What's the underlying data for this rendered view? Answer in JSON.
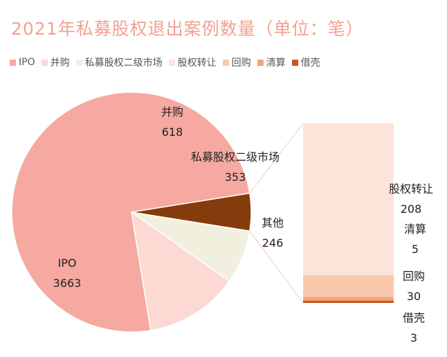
{
  "title": "2021年私募股权退出案例数量（单位：笔）",
  "legend": [
    {
      "label": "IPO",
      "color": "#f5a9a0"
    },
    {
      "label": "并购",
      "color": "#fdd9d4"
    },
    {
      "label": "私募股权二级市场",
      "color": "#f1f0df"
    },
    {
      "label": "股权转让",
      "color": "#fbe4da"
    },
    {
      "label": "回购",
      "color": "#f8c9ad"
    },
    {
      "label": "清算",
      "color": "#f2a57c"
    },
    {
      "label": "借壳",
      "color": "#c9581a"
    }
  ],
  "chart_data": {
    "type": "bar-of-pie",
    "title": "2021年私募股权退出案例数量（单位：笔）",
    "unit": "笔",
    "pie": [
      {
        "name": "IPO",
        "value": 3663,
        "color": "#f5a9a0"
      },
      {
        "name": "并购",
        "value": 618,
        "color": "#fdd9d4"
      },
      {
        "name": "私募股权二级市场",
        "value": 353,
        "color": "#f1f0df"
      },
      {
        "name": "其他",
        "value": 246,
        "color": "#843c0c"
      }
    ],
    "bar_breakdown_of": "其他",
    "bar": [
      {
        "name": "股权转让",
        "value": 208,
        "color": "#fbe4da"
      },
      {
        "name": "回购",
        "value": 30,
        "color": "#f8c9ad"
      },
      {
        "name": "清算",
        "value": 5,
        "color": "#f2a57c"
      },
      {
        "name": "借壳",
        "value": 3,
        "color": "#c9581a"
      }
    ],
    "legend_position": "top"
  }
}
